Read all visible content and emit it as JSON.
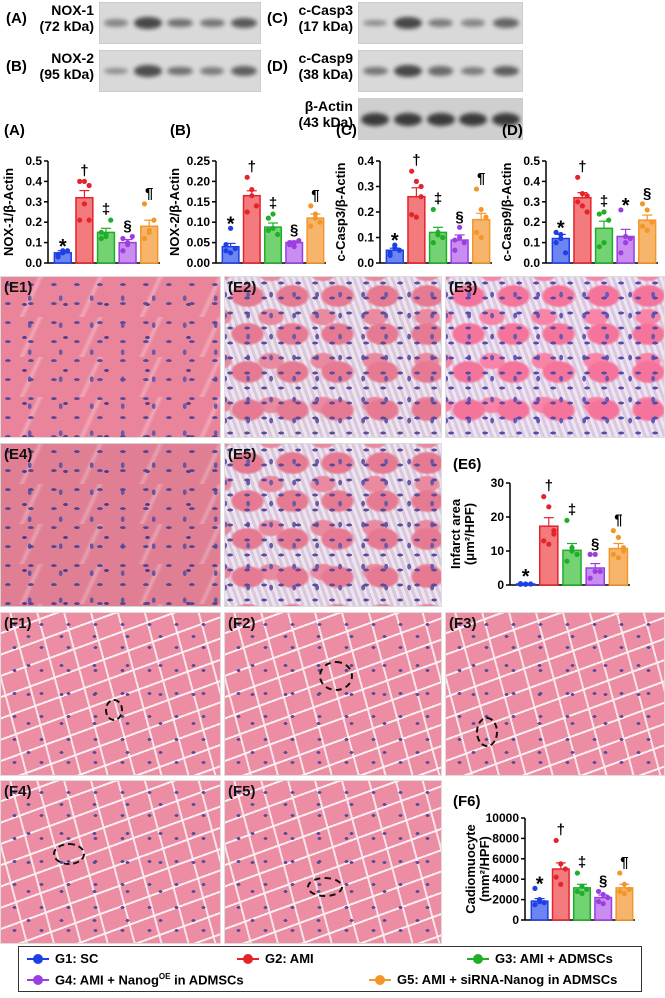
{
  "blots": {
    "left": [
      {
        "tag": "(A)",
        "name": "NOX-1",
        "kda": "(72 kDa)",
        "intensity": [
          0.35,
          0.9,
          0.55,
          0.5,
          0.75
        ]
      },
      {
        "tag": "(B)",
        "name": "NOX-2",
        "kda": "(95 kDa)",
        "intensity": [
          0.3,
          0.85,
          0.55,
          0.45,
          0.7
        ]
      }
    ],
    "right": [
      {
        "tag": "(C)",
        "name": "c-Casp3",
        "kda": "(17 kDa)",
        "intensity": [
          0.3,
          0.9,
          0.45,
          0.35,
          0.65
        ]
      },
      {
        "tag": "(D)",
        "name": "c-Casp9",
        "kda": "(38 kDa)",
        "intensity": [
          0.5,
          0.9,
          0.6,
          0.45,
          0.7
        ]
      },
      {
        "tag": "",
        "name": "β-Actin",
        "kda": "(43 kDa)",
        "intensity": [
          1,
          1,
          1,
          1,
          1
        ]
      }
    ]
  },
  "colors": {
    "G1": {
      "line": "#1d3fe4",
      "fill": "#6d85f3"
    },
    "G2": {
      "line": "#e5232b",
      "fill": "#f47b7d"
    },
    "G3": {
      "line": "#1fae2a",
      "fill": "#73d372"
    },
    "G4": {
      "line": "#9a3ee2",
      "fill": "#c98cf0"
    },
    "G5": {
      "line": "#f2962a",
      "fill": "#f7b56c"
    }
  },
  "chart_data": [
    {
      "id": "A",
      "type": "bar",
      "panel": "(A)",
      "ylabel": "NOX-1/β-Actin",
      "ylim": [
        0,
        0.5
      ],
      "ticks": [
        "0.0",
        "0.1",
        "0.2",
        "0.3",
        "0.4",
        "0.5"
      ],
      "tickvals": [
        0,
        0.1,
        0.2,
        0.3,
        0.4,
        0.5
      ],
      "categories": [
        "G1",
        "G2",
        "G3",
        "G4",
        "G5"
      ],
      "values": [
        0.05,
        0.32,
        0.15,
        0.1,
        0.18
      ],
      "sem": [
        0.01,
        0.035,
        0.02,
        0.015,
        0.03
      ],
      "points": [
        [
          0.03,
          0.05,
          0.06,
          0.04,
          0.06
        ],
        [
          0.21,
          0.29,
          0.38,
          0.4,
          0.4,
          0.21
        ],
        [
          0.12,
          0.14,
          0.21,
          0.15,
          0.13
        ],
        [
          0.06,
          0.1,
          0.13,
          0.12,
          0.09
        ],
        [
          0.12,
          0.15,
          0.21,
          0.29,
          0.16
        ]
      ],
      "annotations": [
        "*",
        "†",
        "‡",
        "§",
        "¶"
      ]
    },
    {
      "id": "B",
      "type": "bar",
      "panel": "(B)",
      "ylabel": "NOX-2/β-Actin",
      "ylim": [
        0,
        0.25
      ],
      "ticks": [
        "0.00",
        "0.05",
        "0.10",
        "0.15",
        "0.20",
        "0.25"
      ],
      "tickvals": [
        0,
        0.05,
        0.1,
        0.15,
        0.2,
        0.25
      ],
      "categories": [
        "G1",
        "G2",
        "G3",
        "G4",
        "G5"
      ],
      "values": [
        0.04,
        0.165,
        0.088,
        0.05,
        0.11
      ],
      "sem": [
        0.008,
        0.012,
        0.01,
        0.004,
        0.01
      ],
      "points": [
        [
          0.03,
          0.085,
          0.035,
          0.045,
          0.025
        ],
        [
          0.21,
          0.18,
          0.14,
          0.125,
          0.165
        ],
        [
          0.11,
          0.12,
          0.07,
          0.08,
          0.085
        ],
        [
          0.045,
          0.05,
          0.055,
          0.05,
          0.04
        ],
        [
          0.14,
          0.11,
          0.1,
          0.09,
          0.12
        ]
      ],
      "annotations": [
        "*",
        "†",
        "‡",
        "§",
        "¶"
      ]
    },
    {
      "id": "C",
      "type": "bar",
      "panel": "(C)",
      "ylabel": "c-Casp3/β-Actin",
      "ylim": [
        0,
        0.4
      ],
      "ticks": [
        "0.0",
        "0.1",
        "0.2",
        "0.3",
        "0.4"
      ],
      "tickvals": [
        0,
        0.1,
        0.2,
        0.3,
        0.4
      ],
      "categories": [
        "G1",
        "G2",
        "G3",
        "G4",
        "G5"
      ],
      "values": [
        0.05,
        0.26,
        0.12,
        0.09,
        0.17
      ],
      "sem": [
        0.008,
        0.035,
        0.02,
        0.02,
        0.025
      ],
      "points": [
        [
          0.03,
          0.06,
          0.05,
          0.04,
          0.07
        ],
        [
          0.36,
          0.32,
          0.26,
          0.19,
          0.18,
          0.3
        ],
        [
          0.21,
          0.12,
          0.1,
          0.08,
          0.11
        ],
        [
          0.05,
          0.14,
          0.08,
          0.09,
          0.1
        ],
        [
          0.29,
          0.21,
          0.18,
          0.12,
          0.1
        ]
      ],
      "annotations": [
        "*",
        "†",
        "‡",
        "§",
        "¶"
      ]
    },
    {
      "id": "D",
      "type": "bar",
      "panel": "(D)",
      "ylabel": "c-Casp9/β-Actin",
      "ylim": [
        0,
        0.5
      ],
      "ticks": [
        "0.0",
        "0.1",
        "0.2",
        "0.3",
        "0.4",
        "0.5"
      ],
      "tickvals": [
        0,
        0.1,
        0.2,
        0.3,
        0.4,
        0.5
      ],
      "categories": [
        "G1",
        "G2",
        "G3",
        "G4",
        "G5"
      ],
      "values": [
        0.12,
        0.32,
        0.17,
        0.13,
        0.21
      ],
      "sem": [
        0.02,
        0.025,
        0.035,
        0.035,
        0.025
      ],
      "points": [
        [
          0.15,
          0.12,
          0.05,
          0.1,
          0.14
        ],
        [
          0.42,
          0.34,
          0.33,
          0.3,
          0.28,
          0.25
        ],
        [
          0.24,
          0.25,
          0.21,
          0.08,
          0.1
        ],
        [
          0.26,
          0.1,
          0.12,
          0.05,
          0.13
        ],
        [
          0.29,
          0.26,
          0.2,
          0.18,
          0.16
        ]
      ],
      "annotations": [
        "*",
        "†",
        "‡",
        "*",
        "§"
      ]
    },
    {
      "id": "E6",
      "type": "bar",
      "panel": "(E6)",
      "ylabel": "Infarct area",
      "ylabel2": "(μm²/HPF)",
      "ylim": [
        0,
        30
      ],
      "ticks": [
        "0",
        "10",
        "20",
        "30"
      ],
      "tickvals": [
        0,
        10,
        20,
        30
      ],
      "categories": [
        "G1",
        "G2",
        "G3",
        "G4",
        "G5"
      ],
      "values": [
        0.3,
        17.3,
        10.2,
        5.0,
        10.7
      ],
      "sem": [
        0.1,
        2.5,
        2.0,
        1.3,
        1.5
      ],
      "points": [
        [
          0.2,
          0.3,
          0.3,
          0.4,
          0.2
        ],
        [
          26,
          23,
          15,
          13,
          12,
          16
        ],
        [
          19,
          11,
          9,
          7,
          10
        ],
        [
          9,
          9,
          4,
          2,
          4
        ],
        [
          16,
          14,
          11,
          9,
          8,
          10
        ]
      ],
      "annotations": [
        "*",
        "†",
        "‡",
        "§",
        "¶"
      ]
    },
    {
      "id": "F6",
      "type": "bar",
      "panel": "(F6)",
      "ylabel": "Cadiomuocyte",
      "ylabel2": "(mm²/HPF)",
      "ylim": [
        0,
        10000
      ],
      "ticks": [
        "0",
        "2000",
        "4000",
        "6000",
        "8000",
        "10000"
      ],
      "tickvals": [
        0,
        2000,
        4000,
        6000,
        8000,
        10000
      ],
      "categories": [
        "G1",
        "G2",
        "G3",
        "G4",
        "G5"
      ],
      "values": [
        1850,
        5000,
        3150,
        2200,
        3150
      ],
      "sem": [
        250,
        600,
        350,
        250,
        350
      ],
      "points": [
        [
          3100,
          2000,
          1700,
          1500,
          1800
        ],
        [
          7800,
          5500,
          5000,
          4200,
          3500
        ],
        [
          4600,
          3300,
          3000,
          2800,
          2600
        ],
        [
          2800,
          2500,
          2200,
          1800,
          1600
        ],
        [
          4600,
          3500,
          3000,
          2800,
          2600
        ]
      ],
      "annotations": [
        "*",
        "†",
        "‡",
        "§",
        "¶"
      ]
    }
  ],
  "histology": {
    "E": [
      "(E1)",
      "(E2)",
      "(E3)",
      "(E4)",
      "(E5)"
    ],
    "F": [
      "(F1)",
      "(F2)",
      "(F3)",
      "(F4)",
      "(F5)"
    ]
  },
  "legend": [
    {
      "group": "G1",
      "text": "G1: SC"
    },
    {
      "group": "G2",
      "text": "G2: AMI"
    },
    {
      "group": "G3",
      "text": "G3: AMI + ADMSCs"
    },
    {
      "group": "G4",
      "text": "G4: AMI + Nanog",
      "sup": "OE",
      "rest": " in ADMSCs"
    },
    {
      "group": "G5",
      "text": "G5: AMI + siRNA-Nanog in ADMSCs"
    }
  ]
}
